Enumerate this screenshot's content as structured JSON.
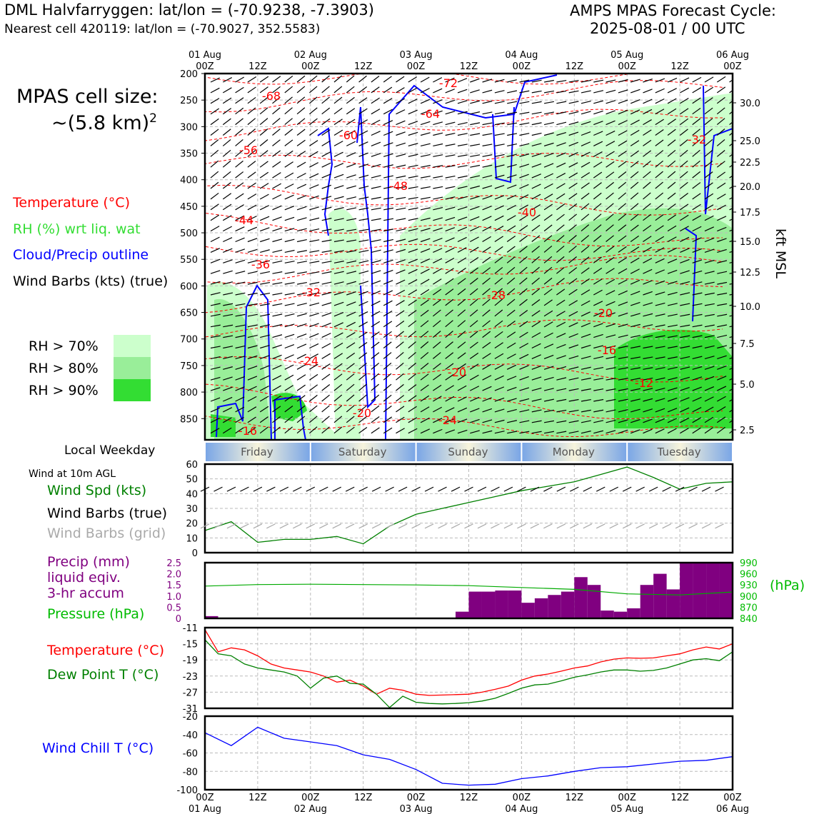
{
  "header": {
    "station_line": "DML Halvfarryggen: lat/lon = (-70.9238, -7.3903)",
    "cell_line": "Nearest cell 420119: lat/lon = (-70.9027, 352.5583)",
    "forecast_title": "AMPS MPAS Forecast Cycle:",
    "forecast_cycle": "2025-08-01 / 00 UTC"
  },
  "legend": {
    "cell_size_title": "MPAS cell size:",
    "cell_size_value": "~(5.8 km)",
    "cell_size_exp": "2",
    "temperature": "Temperature (°C)",
    "rh": "RH (%) wrt liq. wat",
    "cloud": "Cloud/Precip outline",
    "barbs": "Wind Barbs (kts) (true)",
    "rh70": "RH > 70%",
    "rh80": "RH > 80%",
    "rh90": "RH > 90%",
    "local_weekday": "Local Weekday",
    "wind10m": "Wind at 10m AGL",
    "wind_spd": "Wind Spd (kts)",
    "wind_barbs_true": "Wind Barbs (true)",
    "wind_barbs_grid": "Wind Barbs (grid)",
    "precip1": "Precip (mm)",
    "precip2": "liquid eqiv.",
    "precip3": "3-hr accum",
    "pressure": "Pressure (hPa)",
    "pressure_unit": "(hPa)",
    "temp2": "Temperature (°C)",
    "dewpoint": "Dew Point T (°C)",
    "windchill": "Wind Chill T (°C)",
    "kft": "kft MSL"
  },
  "colors": {
    "temperature": "#ff0000",
    "rh_text": "#33dd33",
    "cloud": "#0000ff",
    "rh70": "#ccffcc",
    "rh80": "#99ee99",
    "rh90": "#33dd33",
    "wind_spd": "#008000",
    "precip": "#800080",
    "grid_barb": "#aaaaaa"
  },
  "time_axis": {
    "top_dates": [
      "01 Aug",
      "02 Aug",
      "03 Aug",
      "04 Aug",
      "05 Aug",
      "06 Aug"
    ],
    "top_hours": [
      "00Z",
      "12Z",
      "00Z",
      "12Z",
      "00Z",
      "12Z",
      "00Z",
      "12Z",
      "00Z",
      "12Z",
      "00Z"
    ],
    "weekdays": [
      "Friday",
      "Saturday",
      "Sunday",
      "Monday",
      "Tuesday"
    ]
  },
  "chart_data": [
    {
      "type": "heatmap",
      "panel": "cross-section",
      "y_axis": "pressure (hPa)",
      "y_ticks": [
        200,
        250,
        300,
        350,
        400,
        450,
        500,
        550,
        600,
        650,
        700,
        750,
        800,
        850
      ],
      "ylim": [
        890,
        200
      ],
      "right_ticks_kft": [
        "30.0",
        "25.0",
        "22.5",
        "20.0",
        "17.5",
        "15.0",
        "12.5",
        "10.0",
        "7.5",
        "5.0",
        "2.5"
      ],
      "temperature_contour_labels": [
        "-68",
        "-64",
        "-72",
        "-60",
        "-56",
        "-48",
        "-44",
        "-40",
        "-36",
        "-32",
        "-28",
        "-20",
        "-16",
        "-12",
        "-20",
        "-24",
        "-20",
        "-24",
        "-16",
        "-32"
      ]
    },
    {
      "type": "line",
      "panel": "wind",
      "y_ticks": [
        0,
        10,
        20,
        30,
        40,
        50,
        60
      ],
      "ylim": [
        0,
        60
      ],
      "series": [
        {
          "name": "Wind Spd (kts)",
          "x_hours": [
            0,
            6,
            12,
            18,
            24,
            30,
            36,
            42,
            48,
            54,
            60,
            66,
            72,
            78,
            84,
            90,
            96,
            102,
            108,
            114,
            120
          ],
          "values": [
            15,
            21,
            7,
            9,
            9,
            11,
            6,
            18,
            26,
            30,
            34,
            38,
            42,
            45,
            48,
            53,
            58,
            51,
            43,
            47,
            48
          ]
        }
      ]
    },
    {
      "type": "bar",
      "panel": "precip-pressure",
      "y_ticks": [
        "0",
        "0.5",
        "1.0",
        "1.5",
        "2.0",
        "2.5"
      ],
      "ylim": [
        0,
        2.5
      ],
      "y2_ticks": [
        "840",
        "870",
        "900",
        "930",
        "960",
        "990"
      ],
      "y2lim": [
        840,
        990
      ],
      "x_hours": [
        0,
        3,
        6,
        9,
        12,
        15,
        18,
        21,
        24,
        27,
        30,
        33,
        36,
        39,
        42,
        45,
        48,
        51,
        54,
        57,
        60,
        63,
        66,
        69,
        72,
        75,
        78,
        81,
        84,
        87,
        90,
        93,
        96,
        99,
        102,
        105,
        108,
        111,
        114,
        117
      ],
      "series": [
        {
          "name": "Precip (mm)",
          "values": [
            0.1,
            0,
            0,
            0,
            0,
            0,
            0,
            0,
            0,
            0,
            0,
            0,
            0,
            0,
            0,
            0,
            0,
            0,
            0,
            0.3,
            1.2,
            1.2,
            1.25,
            1.25,
            0.7,
            0.9,
            1.05,
            1.2,
            1.85,
            1.5,
            0.35,
            0.3,
            0.45,
            1.5,
            2.0,
            1.3,
            2.5,
            2.5,
            2.5,
            2.5
          ]
        }
      ],
      "pressure": {
        "name": "Pressure (hPa)",
        "x_hours": [
          0,
          12,
          24,
          36,
          48,
          60,
          72,
          84,
          96,
          108,
          120
        ],
        "values": [
          927,
          931,
          932,
          931,
          930,
          928,
          923,
          918,
          906,
          903,
          911
        ]
      }
    },
    {
      "type": "line",
      "panel": "temperature",
      "y_ticks": [
        "-11",
        "-15",
        "-19",
        "-23",
        "-27",
        "-31"
      ],
      "ylim": [
        -31,
        -11
      ],
      "x_hours": [
        0,
        3,
        6,
        9,
        12,
        15,
        18,
        21,
        24,
        27,
        30,
        33,
        36,
        39,
        42,
        45,
        48,
        51,
        54,
        57,
        60,
        63,
        66,
        69,
        72,
        75,
        78,
        81,
        84,
        87,
        90,
        93,
        96,
        99,
        102,
        105,
        108,
        111,
        114,
        117,
        120
      ],
      "series": [
        {
          "name": "Temperature (°C)",
          "values": [
            -11.5,
            -17,
            -16,
            -16.5,
            -18,
            -20,
            -21,
            -21.5,
            -22,
            -23,
            -24.5,
            -24,
            -25.5,
            -27.5,
            -26,
            -26.5,
            -27.5,
            -27.8,
            -27.7,
            -27.6,
            -27.5,
            -27,
            -26.3,
            -25.5,
            -24,
            -23,
            -22.5,
            -21.8,
            -21,
            -20.5,
            -19.5,
            -18.8,
            -18.5,
            -18.6,
            -18.5,
            -18,
            -17.5,
            -16.5,
            -15.8,
            -16.3,
            -15
          ]
        },
        {
          "name": "Dew Point T (°C)",
          "values": [
            -14,
            -17.5,
            -18,
            -20,
            -21,
            -21.5,
            -22,
            -23,
            -26,
            -23.5,
            -23,
            -24.8,
            -25,
            -27.5,
            -30.8,
            -28,
            -29.5,
            -29.8,
            -29.9,
            -29.8,
            -29.6,
            -29.2,
            -28.5,
            -27.3,
            -26,
            -25.2,
            -25,
            -24.2,
            -23.3,
            -22.7,
            -22,
            -21.5,
            -21.5,
            -21.8,
            -21.6,
            -21,
            -20,
            -19,
            -18.7,
            -19.2,
            -17
          ]
        }
      ]
    },
    {
      "type": "line",
      "panel": "windchill",
      "y_ticks": [
        "-20",
        "-40",
        "-60",
        "-80",
        "-100"
      ],
      "ylim": [
        -100,
        -20
      ],
      "x_hours": [
        0,
        6,
        12,
        18,
        24,
        30,
        36,
        42,
        48,
        54,
        60,
        66,
        72,
        78,
        84,
        90,
        96,
        102,
        108,
        114,
        120
      ],
      "series": [
        {
          "name": "Wind Chill T (°C)",
          "values": [
            -38,
            -52,
            -32,
            -44,
            -48,
            -52,
            -62,
            -67,
            -78,
            -93,
            -95,
            -94,
            -88,
            -85,
            -80,
            -76,
            -75,
            -72,
            -69,
            -68,
            -64
          ]
        }
      ]
    }
  ],
  "bottom_axis": {
    "hours": [
      "00Z",
      "12Z",
      "00Z",
      "12Z",
      "00Z",
      "12Z",
      "00Z",
      "12Z",
      "00Z",
      "12Z",
      "00Z"
    ],
    "dates": [
      "01 Aug",
      "02 Aug",
      "03 Aug",
      "04 Aug",
      "05 Aug",
      "06 Aug"
    ]
  }
}
